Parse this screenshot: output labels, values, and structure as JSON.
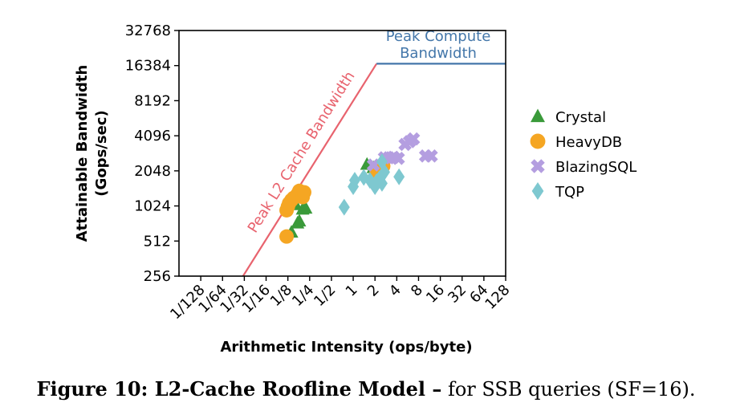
{
  "chart_data": {
    "type": "scatter",
    "xlabel": "Arithmetic Intensity (ops/byte)",
    "ylabel_lines": [
      "Attainable Bandwidth",
      "(Gops/sec)"
    ],
    "x_scale": "log2",
    "y_scale": "log2",
    "xlim": [
      0.00390625,
      128
    ],
    "ylim": [
      256,
      32768
    ],
    "x_ticks": [
      {
        "value": 0.0078125,
        "label": "1/128"
      },
      {
        "value": 0.015625,
        "label": "1/64"
      },
      {
        "value": 0.03125,
        "label": "1/32"
      },
      {
        "value": 0.0625,
        "label": "1/16"
      },
      {
        "value": 0.125,
        "label": "1/8"
      },
      {
        "value": 0.25,
        "label": "1/4"
      },
      {
        "value": 0.5,
        "label": "1/2"
      },
      {
        "value": 1,
        "label": "1"
      },
      {
        "value": 2,
        "label": "2"
      },
      {
        "value": 4,
        "label": "4"
      },
      {
        "value": 8,
        "label": "8"
      },
      {
        "value": 16,
        "label": "16"
      },
      {
        "value": 32,
        "label": "32"
      },
      {
        "value": 64,
        "label": "64"
      },
      {
        "value": 128,
        "label": "128"
      }
    ],
    "y_ticks": [
      {
        "value": 256,
        "label": "256"
      },
      {
        "value": 512,
        "label": "512"
      },
      {
        "value": 1024,
        "label": "1024"
      },
      {
        "value": 2048,
        "label": "2048"
      },
      {
        "value": 4096,
        "label": "4096"
      },
      {
        "value": 8192,
        "label": "8192"
      },
      {
        "value": 16384,
        "label": "16384"
      },
      {
        "value": 32768,
        "label": "32768"
      }
    ],
    "rooflines": [
      {
        "label": "Peak L2 Cache Bandwidth",
        "color": "#e8636e",
        "points": [
          [
            0.03,
            256
          ],
          [
            2.1,
            17000
          ]
        ]
      },
      {
        "label_lines": [
          "Peak Compute",
          "Bandwidth"
        ],
        "color": "#4477aa",
        "points": [
          [
            2.1,
            17000
          ],
          [
            128,
            17000
          ]
        ]
      }
    ],
    "legend_position": "right",
    "series": [
      {
        "name": "Crystal",
        "marker": "triangle",
        "color": "#3a9a3a",
        "points": [
          [
            0.14,
            610
          ],
          [
            0.17,
            730
          ],
          [
            0.18,
            760
          ],
          [
            0.2,
            960
          ],
          [
            0.22,
            980
          ],
          [
            0.16,
            1050
          ],
          [
            1.55,
            2330
          ],
          [
            1.9,
            2180
          ]
        ]
      },
      {
        "name": "HeavyDB",
        "marker": "circle",
        "color": "#f5a623",
        "points": [
          [
            0.12,
            560
          ],
          [
            0.12,
            940
          ],
          [
            0.125,
            1010
          ],
          [
            0.13,
            1080
          ],
          [
            0.14,
            1150
          ],
          [
            0.15,
            1200
          ],
          [
            0.17,
            1290
          ],
          [
            0.18,
            1380
          ],
          [
            0.2,
            1220
          ],
          [
            0.21,
            1340
          ],
          [
            2.1,
            2000
          ],
          [
            2.3,
            2100
          ],
          [
            2.6,
            2250
          ]
        ]
      },
      {
        "name": "BlazingSQL",
        "marker": "x",
        "color": "#b49ee0",
        "points": [
          [
            1.9,
            2300
          ],
          [
            2.7,
            2650
          ],
          [
            3.1,
            2650
          ],
          [
            3.6,
            2680
          ],
          [
            4.2,
            2620
          ],
          [
            5.2,
            3450
          ],
          [
            6.0,
            3650
          ],
          [
            6.8,
            3850
          ],
          [
            10.0,
            2750
          ],
          [
            12.0,
            2750
          ]
        ]
      },
      {
        "name": "TQP",
        "marker": "diamond",
        "color": "#7ec8d0",
        "points": [
          [
            0.75,
            1000
          ],
          [
            1.0,
            1500
          ],
          [
            1.05,
            1700
          ],
          [
            1.4,
            1800
          ],
          [
            1.7,
            1700
          ],
          [
            2.0,
            1500
          ],
          [
            2.1,
            1650
          ],
          [
            2.3,
            1750
          ],
          [
            2.5,
            1600
          ],
          [
            2.7,
            2000
          ],
          [
            2.5,
            2450
          ],
          [
            4.3,
            1820
          ]
        ]
      }
    ]
  },
  "caption": {
    "bold": "Figure 10: L2-Cache Roofline Model –",
    "rest": " for SSB queries (SF=16)."
  }
}
